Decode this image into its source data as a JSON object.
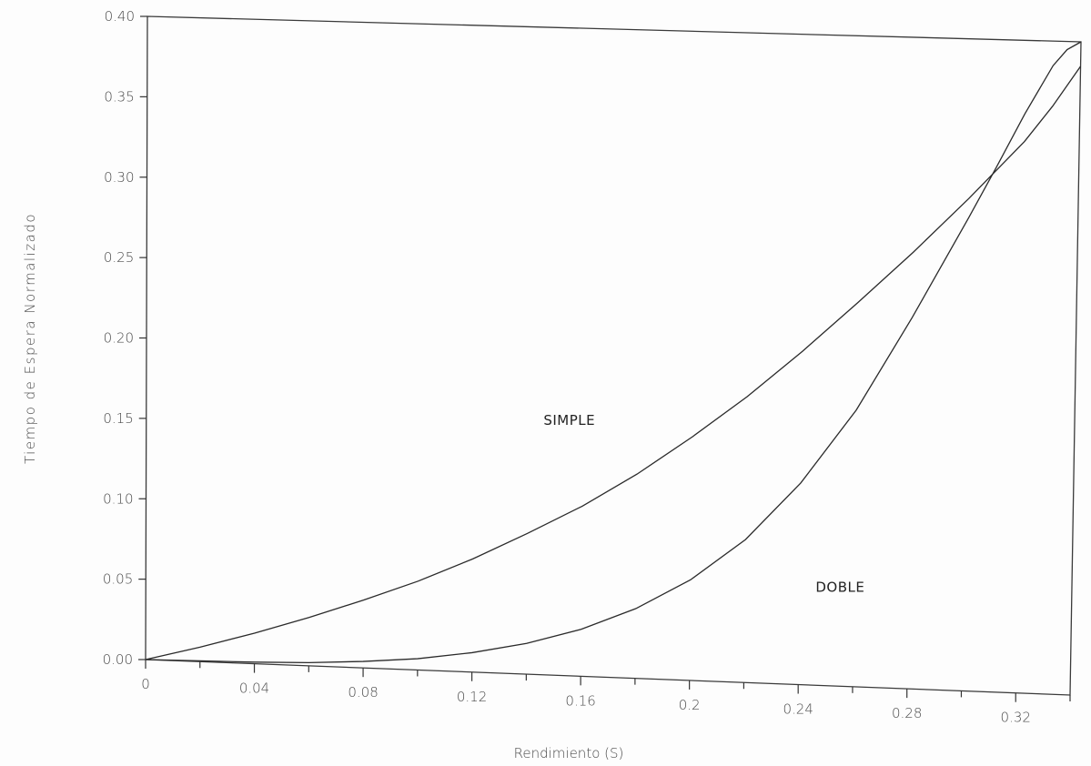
{
  "chart_data": {
    "type": "line",
    "title": "",
    "xlabel": "Rendimiento (S)",
    "ylabel": "Tiempo de Espera Normalizado",
    "xlim": [
      0,
      0.34
    ],
    "ylim": [
      0,
      0.4
    ],
    "x_ticks": [
      0,
      0.04,
      0.08,
      0.12,
      0.16,
      0.2,
      0.24,
      0.28,
      0.32
    ],
    "x_tick_labels": [
      "0",
      "0.04",
      "0.08",
      "0.12",
      "0.16",
      "0.2",
      "0.24",
      "0.28",
      "0.32"
    ],
    "y_ticks": [
      0,
      0.05,
      0.1,
      0.15,
      0.2,
      0.25,
      0.3,
      0.35,
      0.4
    ],
    "y_tick_labels": [
      "0.00",
      "0.05",
      "0.10",
      "0.15",
      "0.20",
      "0.25",
      "0.30",
      "0.35",
      "0.40"
    ],
    "grid": false,
    "series": [
      {
        "name": "SIMPLE",
        "x": [
          0,
          0.02,
          0.04,
          0.06,
          0.08,
          0.1,
          0.12,
          0.14,
          0.16,
          0.18,
          0.2,
          0.22,
          0.24,
          0.26,
          0.28,
          0.3,
          0.32,
          0.33,
          0.34
        ],
        "y": [
          0,
          0.009,
          0.019,
          0.03,
          0.042,
          0.055,
          0.07,
          0.087,
          0.105,
          0.126,
          0.15,
          0.176,
          0.205,
          0.236,
          0.268,
          0.302,
          0.338,
          0.36,
          0.385
        ]
      },
      {
        "name": "DOBLE",
        "x": [
          0,
          0.02,
          0.04,
          0.06,
          0.08,
          0.1,
          0.12,
          0.14,
          0.16,
          0.18,
          0.2,
          0.22,
          0.24,
          0.26,
          0.28,
          0.3,
          0.31,
          0.32,
          0.33,
          0.335,
          0.34
        ],
        "y": [
          0,
          0.0005,
          0.001,
          0.002,
          0.004,
          0.007,
          0.012,
          0.019,
          0.029,
          0.043,
          0.062,
          0.088,
          0.124,
          0.17,
          0.228,
          0.29,
          0.322,
          0.355,
          0.385,
          0.395,
          0.4
        ]
      }
    ],
    "annotations": [
      {
        "text": "SIMPLE",
        "x": 0.155,
        "y": 0.155
      },
      {
        "text": "DOBLE",
        "x": 0.255,
        "y": 0.058
      }
    ]
  }
}
